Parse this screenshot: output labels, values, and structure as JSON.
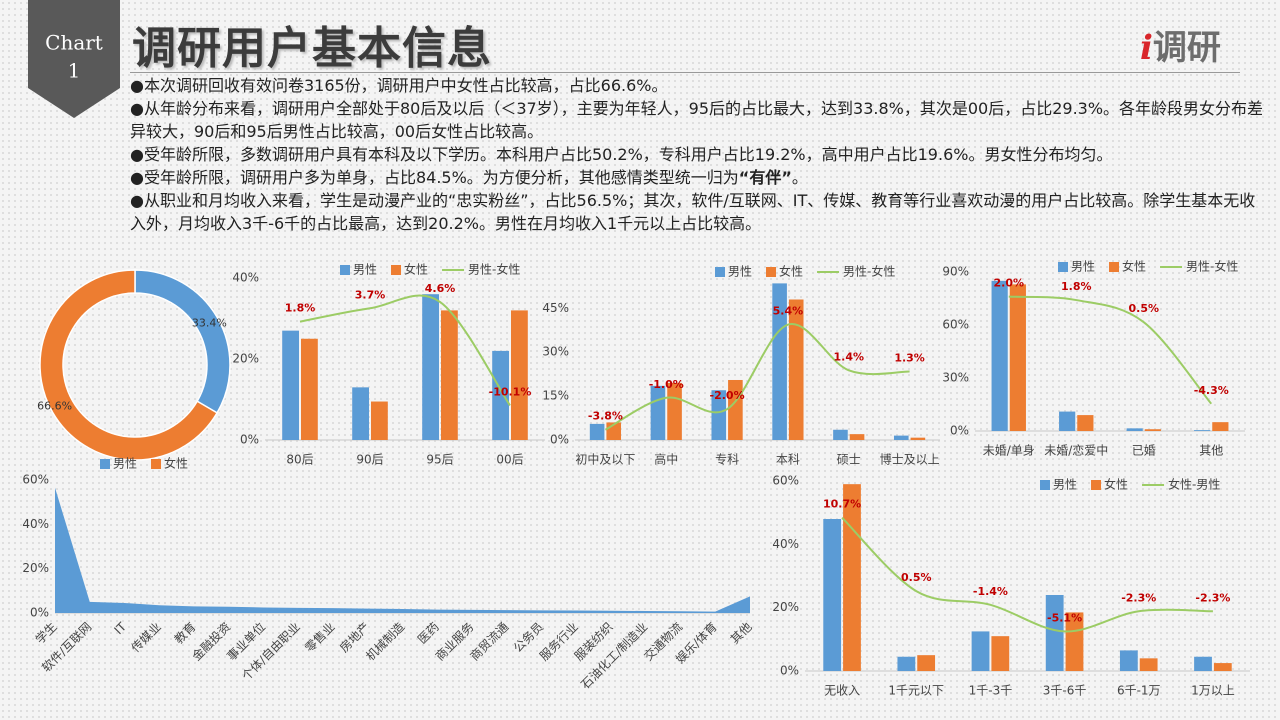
{
  "header": {
    "badge_line1": "Chart",
    "badge_line2": "1",
    "title": "调研用户基本信息",
    "logo_mark": "i",
    "logo_text": "调研"
  },
  "bullets": [
    [
      "●本次调研回收有效问卷3165份，调研用户中女性占比较高，占比66.6%。"
    ],
    [
      "●从年龄分布来看，调研用户全部处于80后及以后（＜37岁），主要为年轻人，95后的占比最大，达到33.8%，其次是00后，占比29.3%。各年龄段男女分布差异较大，90后和95后男性占比较高，00后女性占比较高。"
    ],
    [
      "●受年龄所限，多数调研用户具有本科及以下学历。本科用户占比50.2%，专科用户占比19.2%，高中用户占比19.6%。男女性分布均匀。"
    ],
    [
      "●受年龄所限，调研用户多为单身，占比84.5%。为方便分析，其他感情类型统一归为",
      "“有伴”",
      "。"
    ],
    [
      "●从职业和月均收入来看，学生是动漫产业的“忠实粉丝”，占比56.5%；其次，软件/互联网、IT、传媒、教育等行业喜欢动漫的用户占比较高。除学生基本无收入外，月均收入3千-6千的占比最高，达到20.2%。男性在月均收入1千元以上占比较高。"
    ]
  ],
  "chart_data": [
    {
      "type": "pie",
      "donut": true,
      "categories": [
        "男性",
        "女性"
      ],
      "values": [
        33.4,
        66.6
      ],
      "value_labels": [
        "33.4%",
        "66.6%"
      ],
      "colors": [
        "#5b9bd5",
        "#ed7d31"
      ],
      "legend": "bottom"
    },
    {
      "type": "bar",
      "categories": [
        "80后",
        "90后",
        "95后",
        "00后"
      ],
      "ylim": [
        0,
        40
      ],
      "yticks": [
        {
          "value": 0,
          "label": "0%"
        },
        {
          "value": 20,
          "label": "20%"
        },
        {
          "value": 40,
          "label": "40%"
        }
      ],
      "y2lim": [
        -15,
        8
      ],
      "legend": "top",
      "series": [
        {
          "name": "男性",
          "color": "#5b9bd5",
          "values": [
            27,
            13,
            36,
            22
          ]
        },
        {
          "name": "女性",
          "color": "#ed7d31",
          "values": [
            25,
            9.5,
            32,
            32
          ]
        },
        {
          "name": "男性-女性",
          "type": "line",
          "axis": "y2",
          "color": "#9ccc65",
          "values": [
            1.8,
            3.7,
            4.6,
            -10.1
          ],
          "value_labels": [
            "1.8%",
            "3.7%",
            "4.6%",
            "-10.1%"
          ]
        }
      ]
    },
    {
      "type": "bar",
      "categories": [
        "初中及以下",
        "高中",
        "专科",
        "本科",
        "硕士",
        "博士及以上"
      ],
      "ylim": [
        0,
        55
      ],
      "yticks": [
        {
          "value": 0,
          "label": "0%"
        },
        {
          "value": 15,
          "label": "15%"
        },
        {
          "value": 30,
          "label": "30%"
        },
        {
          "value": 45,
          "label": "45%"
        }
      ],
      "y2lim": [
        -4.7,
        9.4
      ],
      "legend": "top",
      "series": [
        {
          "name": "男性",
          "color": "#5b9bd5",
          "values": [
            5.5,
            18.5,
            17,
            53.5,
            3.5,
            1.5
          ]
        },
        {
          "name": "女性",
          "color": "#ed7d31",
          "values": [
            6,
            19.5,
            20.5,
            48,
            2,
            0.8
          ]
        },
        {
          "name": "男性-女性",
          "type": "line",
          "axis": "y2",
          "color": "#9ccc65",
          "values": [
            -3.8,
            -1.0,
            -2.0,
            5.4,
            1.4,
            1.3
          ],
          "value_labels": [
            "-3.8%",
            "-1.0%",
            "-2.0%",
            "5.4%",
            "1.4%",
            "1.3%"
          ]
        }
      ]
    },
    {
      "type": "bar",
      "categories": [
        "未婚/单身",
        "未婚/恋爱中",
        "已婚",
        "其他"
      ],
      "ylim": [
        0,
        90
      ],
      "yticks": [
        {
          "value": 0,
          "label": "0%"
        },
        {
          "value": 30,
          "label": "30%"
        },
        {
          "value": 60,
          "label": "60%"
        },
        {
          "value": 90,
          "label": "90%"
        }
      ],
      "y2lim": [
        -5.9,
        3.45
      ],
      "legend": "top",
      "series": [
        {
          "name": "男性",
          "color": "#5b9bd5",
          "values": [
            85,
            11,
            1.5,
            0.5
          ]
        },
        {
          "name": "女性",
          "color": "#ed7d31",
          "values": [
            83,
            9,
            1,
            5
          ]
        },
        {
          "name": "男性-女性",
          "type": "line",
          "axis": "y2",
          "color": "#9ccc65",
          "values": [
            2.0,
            1.8,
            0.5,
            -4.3
          ],
          "value_labels": [
            "2.0%",
            "1.8%",
            "0.5%",
            "-4.3%"
          ]
        }
      ]
    },
    {
      "type": "area",
      "color": "#5b9bd5",
      "ylim": [
        0,
        60
      ],
      "yticks": [
        {
          "value": 0,
          "label": "0%"
        },
        {
          "value": 20,
          "label": "20%"
        },
        {
          "value": 40,
          "label": "40%"
        },
        {
          "value": 60,
          "label": "60%"
        }
      ],
      "categories": [
        "学生",
        "软件/互联网",
        "IT",
        "传媒业",
        "教育",
        "金融投资",
        "事业单位",
        "个体/自由职业",
        "零售业",
        "房地产",
        "机械制造",
        "医药",
        "商业服务",
        "商贸流通",
        "公务员",
        "服务行业",
        "服装纺织",
        "石油化工/制造业",
        "交通物流",
        "娱乐/体育",
        "其他"
      ],
      "values": [
        56.5,
        5,
        4.5,
        3.5,
        3,
        2.8,
        2.5,
        2.3,
        2.2,
        2,
        1.8,
        1.5,
        1.4,
        1.3,
        1.2,
        1.1,
        1.0,
        0.9,
        0.8,
        0.6,
        7.5
      ]
    },
    {
      "type": "bar",
      "categories": [
        "无收入",
        "1千元以下",
        "1千-3千",
        "3千-6千",
        "6千-1万",
        "1万以上"
      ],
      "ylim": [
        0,
        60
      ],
      "yticks": [
        {
          "value": 0,
          "label": "0%"
        },
        {
          "value": 20,
          "label": "20%"
        },
        {
          "value": 40,
          "label": "40%"
        },
        {
          "value": 60,
          "label": "60%"
        }
      ],
      "y2lim": [
        -10.6,
        15.8
      ],
      "legend": "top",
      "series": [
        {
          "name": "男性",
          "color": "#5b9bd5",
          "values": [
            48,
            4.5,
            12.5,
            24,
            6.5,
            4.5
          ]
        },
        {
          "name": "女性",
          "color": "#ed7d31",
          "values": [
            59,
            5,
            11,
            18.5,
            4,
            2.5
          ]
        },
        {
          "name": "女性-男性",
          "type": "line",
          "axis": "y2",
          "color": "#9ccc65",
          "values": [
            10.7,
            0.5,
            -1.4,
            -5.1,
            -2.3,
            -2.3
          ],
          "value_labels": [
            "10.7%",
            "0.5%",
            "-1.4%",
            "-5.1%",
            "-2.3%",
            "-2.3%"
          ]
        }
      ]
    }
  ]
}
